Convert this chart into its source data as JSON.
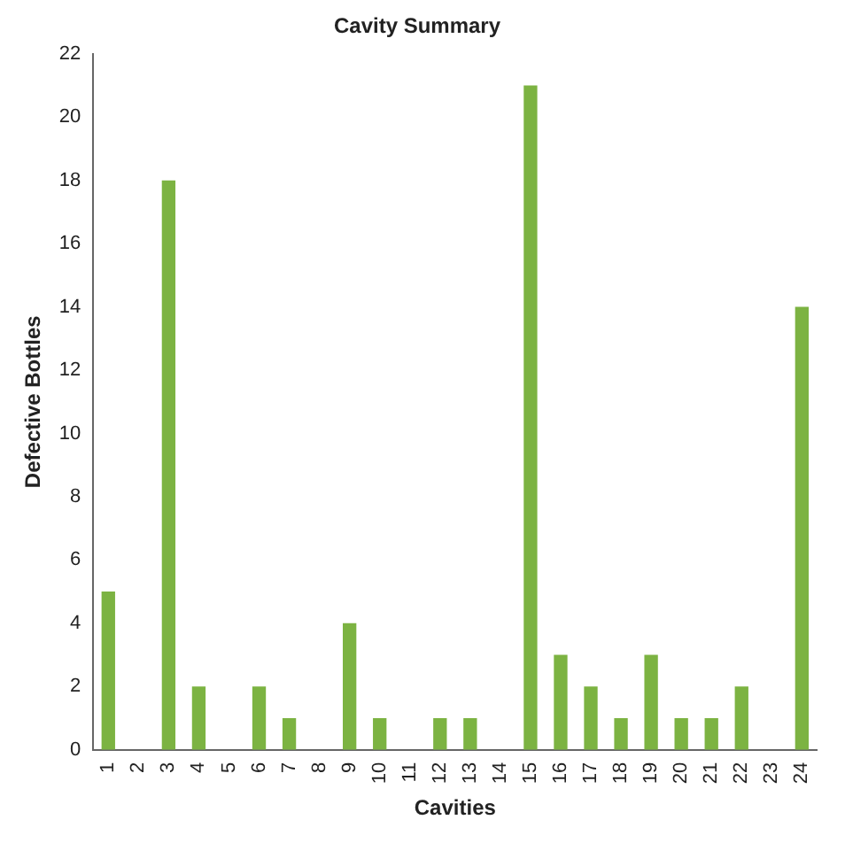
{
  "chart_data": {
    "type": "bar",
    "title": "Cavity Summary",
    "xlabel": "Cavities",
    "ylabel": "Defective Bottles",
    "categories": [
      "1",
      "2",
      "3",
      "4",
      "5",
      "6",
      "7",
      "8",
      "9",
      "10",
      "11",
      "12",
      "13",
      "14",
      "15",
      "16",
      "17",
      "18",
      "19",
      "20",
      "21",
      "22",
      "23",
      "24"
    ],
    "values": [
      5,
      0,
      18,
      2,
      0,
      2,
      1,
      0,
      4,
      1,
      0,
      1,
      1,
      0,
      21,
      3,
      2,
      1,
      3,
      1,
      1,
      2,
      0,
      14
    ],
    "color": "#7cb342",
    "ylim": [
      0,
      22
    ],
    "yticks": [
      0,
      2,
      4,
      6,
      8,
      10,
      12,
      14,
      16,
      18,
      20,
      22
    ],
    "grid": false,
    "legend": false
  }
}
